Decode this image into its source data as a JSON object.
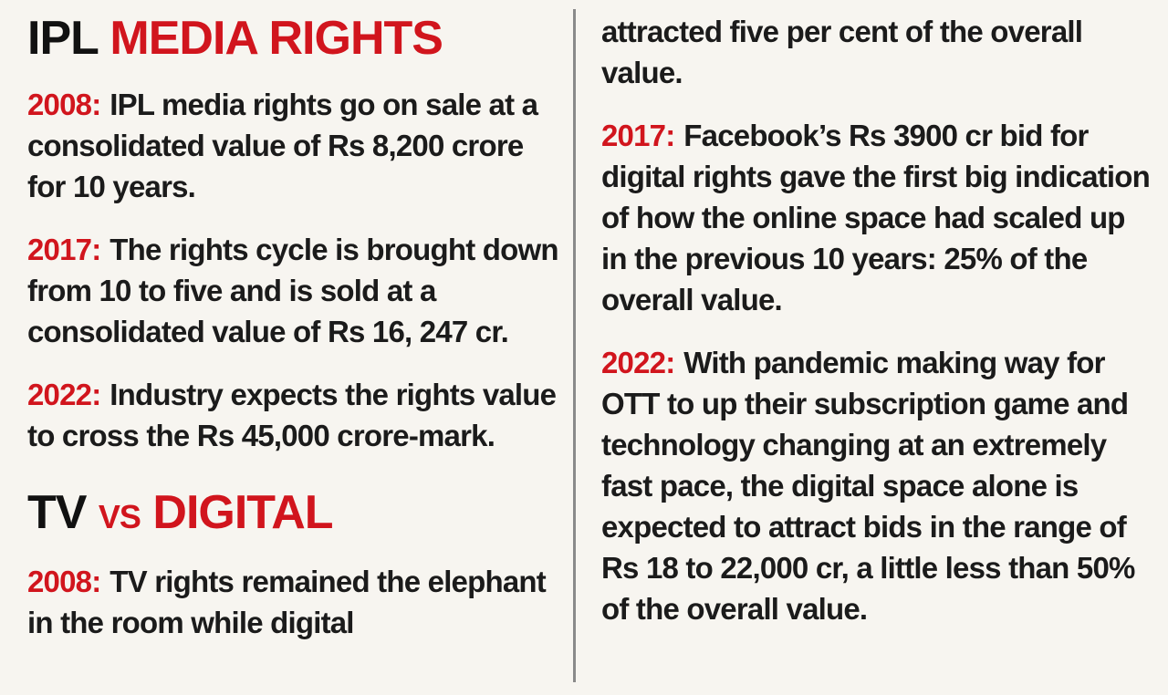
{
  "colors": {
    "accent_red": "#d1151d",
    "text": "#1b1b1b",
    "background": "#f7f5f0",
    "divider": "#8a8a8a"
  },
  "left_column": {
    "heading1": {
      "black_part": "IPL",
      "red_part": "MEDIA RIGHTS"
    },
    "media_rights_entries": [
      {
        "year": "2008:",
        "text": "IPL media rights go on sale at a consolidated value of Rs 8,200 crore for 10 years."
      },
      {
        "year": "2017:",
        "text": "The rights cycle is brought down from 10 to five and is sold at a consolidated value of Rs 16, 247 cr."
      },
      {
        "year": "2022:",
        "text": "Industry expects the rights value to cross the Rs 45,000 crore-mark."
      }
    ],
    "heading2": {
      "black_part": "TV",
      "vs_part": "VS",
      "red_part": "DIGITAL"
    },
    "tv_vs_digital_entries": [
      {
        "year": "2008:",
        "text": "TV rights remained the elephant in the room while digital"
      }
    ]
  },
  "right_column": {
    "continuation_text": "attracted five per cent of the overall value.",
    "entries": [
      {
        "year": "2017:",
        "text": "Facebook’s Rs 3900 cr bid for digital rights gave the first big indication of how the online space had scaled up in the previous 10 years: 25% of the overall value."
      },
      {
        "year": "2022:",
        "text": "With pandemic making way for OTT to up their subscription game and technology changing at an extremely fast pace, the digital space alone is expected to attract bids in the range of Rs 18 to 22,000 cr, a little less than 50% of the overall value."
      }
    ]
  }
}
